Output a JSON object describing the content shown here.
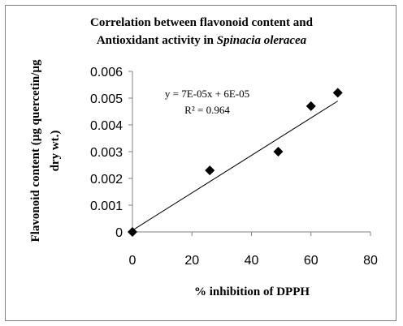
{
  "chart_data": {
    "type": "scatter",
    "title_line1": "Correlation between flavonoid content and",
    "title_line2_prefix": "Antioxidant activity in ",
    "title_line2_italic": "Spinacia oleracea",
    "xlabel": "% inhibition of DPPH",
    "ylabel_line1": "Flavonoid content (µg quercetin/µg",
    "ylabel_line2": "dry wt.)",
    "xlim": [
      0,
      80
    ],
    "ylim": [
      0,
      0.006
    ],
    "x_ticks": [
      "0",
      "20",
      "40",
      "60",
      "80"
    ],
    "y_ticks": [
      "0",
      "0.001",
      "0.002",
      "0.003",
      "0.004",
      "0.005",
      "0.006"
    ],
    "grid": false,
    "legend": "none",
    "marker": "diamond",
    "marker_color": "#000000",
    "series": [
      {
        "x": [
          0,
          26,
          49,
          60,
          69
        ],
        "y": [
          0,
          0.0023,
          0.003,
          0.0047,
          0.0052
        ]
      }
    ],
    "trendline": {
      "type": "linear",
      "slope": 7e-05,
      "intercept": 6e-05,
      "equation": "y = 7E-05x + 6E-05",
      "r_squared": "R² = 0.964"
    }
  }
}
